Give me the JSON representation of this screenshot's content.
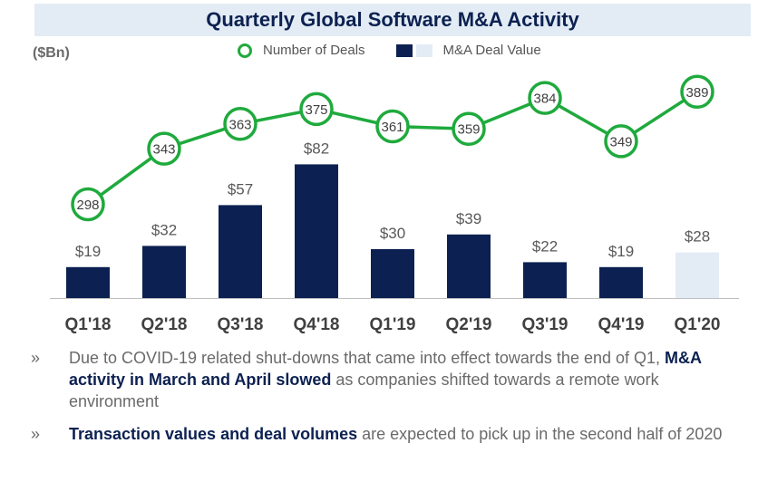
{
  "title": "Quarterly Global Software M&A Activity",
  "unit_label": "($Bn)",
  "legend": {
    "deals": "Number of Deals",
    "value": "M&A Deal Value"
  },
  "colors": {
    "bar": "#0c2151",
    "bar_highlight": "#e3ecf5",
    "line": "#1faa3d"
  },
  "chart_data": {
    "type": "bar",
    "categories": [
      "Q1'18",
      "Q2'18",
      "Q3'18",
      "Q4'18",
      "Q1'19",
      "Q2'19",
      "Q3'19",
      "Q4'19",
      "Q1'20"
    ],
    "series": [
      {
        "name": "M&A Deal Value",
        "type": "bar",
        "values": [
          19,
          32,
          57,
          82,
          30,
          39,
          22,
          19,
          28
        ],
        "labels": [
          "$19",
          "$32",
          "$57",
          "$82",
          "$30",
          "$39",
          "$22",
          "$19",
          "$28"
        ]
      },
      {
        "name": "Number of Deals",
        "type": "line",
        "values": [
          298,
          343,
          363,
          375,
          361,
          359,
          384,
          349,
          389
        ]
      }
    ],
    "highlight_category": "Q1'20",
    "legend_position": "top",
    "grid": false
  },
  "notes": [
    {
      "bullet": "»",
      "before": "Due to COVID-19 related shut-downs that came into effect towards the end of Q1, ",
      "bold": "M&A activity in March and April slowed",
      "after": " as companies shifted towards a remote work environment"
    },
    {
      "bullet": "»",
      "before": "",
      "bold": "Transaction values and deal volumes",
      "after": " are expected to pick up in the second half of 2020"
    }
  ]
}
